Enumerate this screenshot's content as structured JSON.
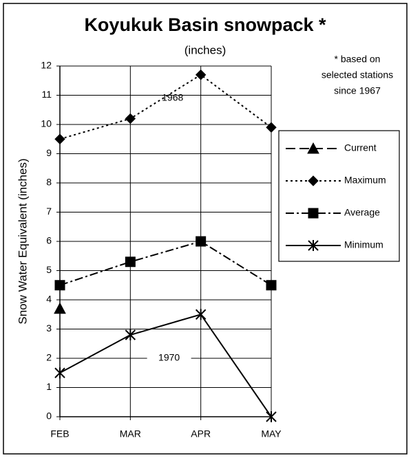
{
  "chart_data": {
    "type": "line",
    "title": "Koyukuk Basin snowpack *",
    "subtitle": "(inches)",
    "y_label": "Snow Water Equivalent (inches)",
    "note": [
      "* based on",
      "selected stations",
      "since 1967"
    ],
    "annotations": [
      {
        "text": "1968",
        "category": 1.6,
        "y": 10.9
      },
      {
        "text": "1970",
        "category": 1.55,
        "y": 2.0,
        "boxed": true
      }
    ],
    "categories": [
      "FEB",
      "MAR",
      "APR",
      "MAY"
    ],
    "series": [
      {
        "name": "Current",
        "color": "#000000",
        "marker": "triangle",
        "dash": "14 6",
        "values": [
          3.7,
          null,
          null,
          null
        ]
      },
      {
        "name": "Maximum",
        "color": "#000000",
        "marker": "diamond",
        "dash": "3 4",
        "values": [
          9.5,
          10.2,
          11.7,
          9.9
        ]
      },
      {
        "name": "Average",
        "color": "#000000",
        "marker": "square",
        "dash": "12 4 3 4",
        "values": [
          4.5,
          5.3,
          6.0,
          4.5
        ]
      },
      {
        "name": "Minimum",
        "color": "#000000",
        "marker": "star",
        "dash": "none",
        "values": [
          1.5,
          2.8,
          3.5,
          0
        ]
      }
    ],
    "ylim": [
      0,
      12
    ],
    "yticks": [
      0,
      1,
      2,
      3,
      4,
      5,
      6,
      7,
      8,
      9,
      10,
      11,
      12
    ],
    "grid": true,
    "legend": "right"
  }
}
